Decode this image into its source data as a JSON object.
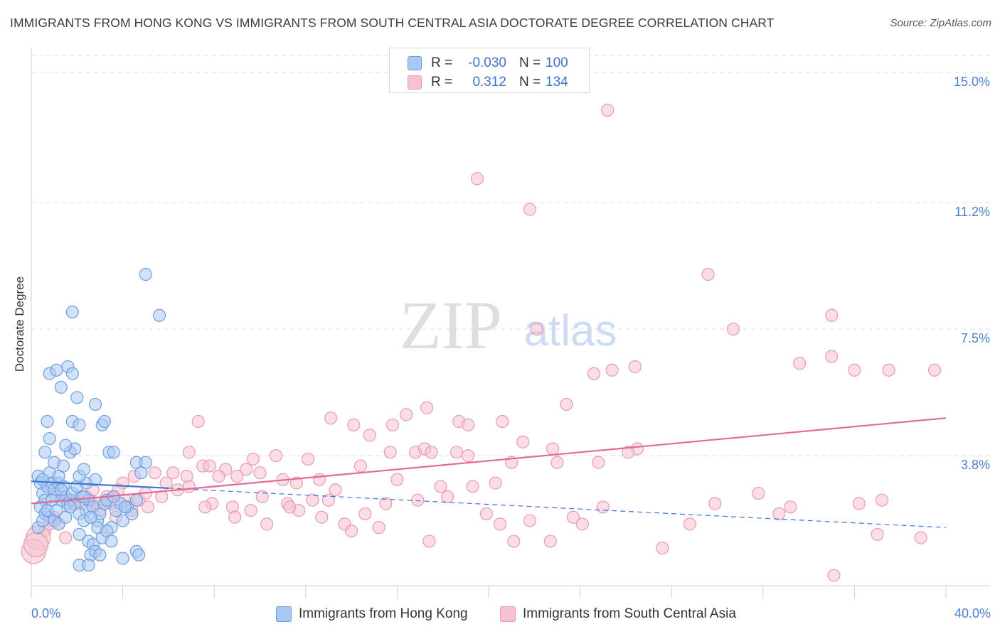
{
  "title": "IMMIGRANTS FROM HONG KONG VS IMMIGRANTS FROM SOUTH CENTRAL ASIA DOCTORATE DEGREE CORRELATION CHART",
  "source": "Source: ZipAtlas.com",
  "colors": {
    "blue_fill": "#a9c8f2",
    "blue_stroke": "#6f9ee0",
    "blue_line": "#3b76d4",
    "pink_fill": "#f6c1d0",
    "pink_stroke": "#ea9ab2",
    "pink_line": "#e26b94",
    "grid": "#dedede",
    "tick_label": "#4a7fd0"
  },
  "legend": {
    "rows": [
      {
        "r_label": "R =",
        "r_value": "-0.030",
        "n_label": "N =",
        "n_value": "100"
      },
      {
        "r_label": "R =",
        "r_value": "0.312",
        "n_label": "N =",
        "n_value": "134"
      }
    ]
  },
  "watermark": {
    "zip": "ZIP",
    "atlas": "atlas"
  },
  "chart_data": {
    "type": "scatter",
    "title": "IMMIGRANTS FROM HONG KONG VS IMMIGRANTS FROM SOUTH CENTRAL ASIA DOCTORATE DEGREE CORRELATION CHART",
    "xlabel": "",
    "ylabel": "Doctorate Degree",
    "xlim": [
      0,
      40
    ],
    "ylim": [
      0,
      15.5
    ],
    "x_tick_labels": [
      "0.0%",
      "40.0%"
    ],
    "y_ticks": [
      3.8,
      7.5,
      11.2,
      15.0
    ],
    "y_tick_labels": [
      "3.8%",
      "7.5%",
      "11.2%",
      "15.0%"
    ],
    "grid": true,
    "legend_position": "top-center",
    "series": [
      {
        "name": "Immigrants from Hong Kong",
        "color": "blue",
        "R": -0.03,
        "N": 100,
        "trend_solid": {
          "x": [
            0,
            6
          ],
          "y": [
            3.05,
            2.85
          ]
        },
        "trend_dashed": {
          "x": [
            6,
            40
          ],
          "y": [
            2.85,
            1.7
          ]
        },
        "points": [
          [
            0.3,
            3.2
          ],
          [
            0.4,
            3.0
          ],
          [
            0.5,
            2.7
          ],
          [
            0.6,
            2.5
          ],
          [
            0.7,
            2.9
          ],
          [
            0.8,
            3.3
          ],
          [
            0.9,
            3.0
          ],
          [
            1.0,
            2.8
          ],
          [
            1.1,
            2.6
          ],
          [
            1.2,
            3.0
          ],
          [
            1.3,
            2.5
          ],
          [
            1.4,
            2.9
          ],
          [
            1.5,
            2.6
          ],
          [
            1.6,
            2.4
          ],
          [
            1.7,
            2.5
          ],
          [
            1.8,
            2.7
          ],
          [
            1.9,
            2.4
          ],
          [
            2.0,
            2.9
          ],
          [
            2.2,
            2.6
          ],
          [
            2.4,
            3.0
          ],
          [
            0.4,
            2.3
          ],
          [
            0.6,
            2.1
          ],
          [
            0.8,
            2.0
          ],
          [
            1.0,
            1.9
          ],
          [
            1.2,
            1.8
          ],
          [
            0.3,
            1.7
          ],
          [
            0.5,
            1.9
          ],
          [
            0.7,
            2.2
          ],
          [
            2.5,
            2.5
          ],
          [
            2.8,
            3.1
          ],
          [
            0.6,
            3.9
          ],
          [
            0.8,
            4.3
          ],
          [
            1.0,
            3.6
          ],
          [
            1.2,
            3.2
          ],
          [
            1.4,
            3.5
          ],
          [
            1.7,
            3.9
          ],
          [
            1.9,
            4.0
          ],
          [
            2.1,
            3.2
          ],
          [
            2.3,
            3.4
          ],
          [
            1.5,
            4.1
          ],
          [
            0.7,
            4.8
          ],
          [
            1.8,
            4.8
          ],
          [
            2.1,
            4.7
          ],
          [
            3.1,
            4.7
          ],
          [
            3.2,
            4.8
          ],
          [
            3.4,
            3.9
          ],
          [
            3.6,
            3.9
          ],
          [
            4.6,
            3.6
          ],
          [
            5.0,
            3.6
          ],
          [
            2.8,
            5.3
          ],
          [
            0.8,
            6.2
          ],
          [
            1.1,
            6.3
          ],
          [
            1.3,
            5.8
          ],
          [
            1.6,
            6.4
          ],
          [
            1.8,
            6.2
          ],
          [
            2.0,
            5.5
          ],
          [
            1.8,
            8.0
          ],
          [
            5.0,
            9.1
          ],
          [
            5.6,
            7.9
          ],
          [
            2.4,
            2.2
          ],
          [
            2.7,
            2.3
          ],
          [
            2.9,
            1.9
          ],
          [
            3.0,
            2.1
          ],
          [
            3.2,
            2.4
          ],
          [
            3.3,
            2.5
          ],
          [
            3.5,
            1.7
          ],
          [
            3.7,
            2.2
          ],
          [
            3.9,
            2.4
          ],
          [
            4.0,
            1.9
          ],
          [
            4.2,
            2.3
          ],
          [
            4.4,
            2.1
          ],
          [
            4.6,
            2.5
          ],
          [
            4.8,
            3.3
          ],
          [
            2.1,
            2.1
          ],
          [
            2.3,
            1.9
          ],
          [
            2.1,
            1.5
          ],
          [
            2.5,
            1.3
          ],
          [
            2.7,
            1.2
          ],
          [
            2.9,
            1.7
          ],
          [
            3.1,
            1.4
          ],
          [
            3.3,
            1.6
          ],
          [
            3.5,
            1.3
          ],
          [
            2.6,
            0.9
          ],
          [
            2.8,
            1.0
          ],
          [
            3.0,
            0.9
          ],
          [
            2.1,
            0.6
          ],
          [
            2.5,
            0.6
          ],
          [
            4.0,
            0.8
          ],
          [
            4.6,
            1.0
          ],
          [
            4.7,
            0.9
          ],
          [
            1.5,
            2.0
          ],
          [
            1.7,
            2.3
          ],
          [
            2.6,
            2.0
          ],
          [
            0.9,
            2.5
          ],
          [
            1.1,
            2.2
          ],
          [
            1.3,
            2.8
          ],
          [
            2.3,
            2.6
          ],
          [
            3.6,
            2.6
          ],
          [
            4.1,
            2.3
          ],
          [
            0.5,
            3.1
          ]
        ]
      },
      {
        "name": "Immigrants from South Central Asia",
        "color": "pink",
        "R": 0.312,
        "N": 134,
        "trend": {
          "x": [
            0,
            40
          ],
          "y": [
            2.4,
            4.9
          ]
        },
        "points": [
          [
            25.2,
            13.9
          ],
          [
            19.5,
            11.9
          ],
          [
            21.8,
            11.0
          ],
          [
            29.6,
            9.1
          ],
          [
            22.1,
            7.5
          ],
          [
            30.7,
            7.5
          ],
          [
            35.0,
            7.9
          ],
          [
            24.6,
            6.2
          ],
          [
            25.4,
            6.3
          ],
          [
            26.4,
            6.4
          ],
          [
            33.6,
            6.5
          ],
          [
            35.0,
            6.7
          ],
          [
            36.0,
            6.3
          ],
          [
            37.5,
            6.3
          ],
          [
            39.5,
            6.3
          ],
          [
            23.4,
            5.3
          ],
          [
            17.3,
            5.2
          ],
          [
            16.4,
            5.0
          ],
          [
            13.1,
            4.9
          ],
          [
            18.7,
            4.8
          ],
          [
            20.6,
            4.8
          ],
          [
            14.1,
            4.7
          ],
          [
            19.1,
            4.7
          ],
          [
            7.3,
            4.8
          ],
          [
            15.8,
            4.7
          ],
          [
            14.8,
            4.4
          ],
          [
            21.5,
            4.2
          ],
          [
            16.8,
            3.9
          ],
          [
            17.2,
            4.0
          ],
          [
            17.5,
            3.9
          ],
          [
            15.7,
            3.9
          ],
          [
            18.6,
            3.9
          ],
          [
            19.1,
            3.8
          ],
          [
            22.8,
            4.0
          ],
          [
            26.5,
            4.0
          ],
          [
            26.1,
            3.9
          ],
          [
            12.1,
            3.7
          ],
          [
            10.7,
            3.8
          ],
          [
            9.7,
            3.7
          ],
          [
            6.9,
            3.9
          ],
          [
            7.5,
            3.5
          ],
          [
            7.8,
            3.5
          ],
          [
            8.5,
            3.4
          ],
          [
            9.4,
            3.4
          ],
          [
            10.0,
            3.3
          ],
          [
            8.2,
            3.2
          ],
          [
            9.0,
            3.2
          ],
          [
            11.6,
            3.0
          ],
          [
            12.6,
            3.1
          ],
          [
            14.4,
            3.5
          ],
          [
            16.0,
            3.1
          ],
          [
            17.9,
            2.9
          ],
          [
            18.2,
            2.6
          ],
          [
            19.3,
            2.9
          ],
          [
            20.3,
            3.0
          ],
          [
            21.0,
            3.6
          ],
          [
            23.0,
            3.6
          ],
          [
            24.8,
            3.6
          ],
          [
            13.3,
            2.8
          ],
          [
            11.0,
            3.1
          ],
          [
            6.2,
            3.3
          ],
          [
            6.8,
            3.2
          ],
          [
            5.4,
            3.3
          ],
          [
            5.9,
            3.0
          ],
          [
            4.0,
            3.0
          ],
          [
            4.5,
            3.2
          ],
          [
            3.8,
            2.8
          ],
          [
            3.6,
            2.6
          ],
          [
            4.7,
            2.5
          ],
          [
            5.1,
            2.3
          ],
          [
            5.7,
            2.6
          ],
          [
            6.4,
            2.8
          ],
          [
            6.9,
            2.9
          ],
          [
            7.9,
            2.4
          ],
          [
            8.8,
            2.3
          ],
          [
            9.6,
            2.2
          ],
          [
            10.1,
            2.6
          ],
          [
            11.2,
            2.4
          ],
          [
            11.7,
            2.2
          ],
          [
            12.3,
            2.5
          ],
          [
            13.0,
            2.5
          ],
          [
            14.6,
            2.1
          ],
          [
            15.5,
            2.4
          ],
          [
            16.9,
            2.5
          ],
          [
            17.4,
            1.3
          ],
          [
            19.9,
            2.1
          ],
          [
            20.5,
            1.8
          ],
          [
            21.1,
            1.3
          ],
          [
            21.8,
            1.9
          ],
          [
            22.7,
            1.3
          ],
          [
            23.7,
            2.0
          ],
          [
            24.1,
            1.8
          ],
          [
            25.0,
            2.3
          ],
          [
            27.6,
            1.1
          ],
          [
            28.8,
            1.8
          ],
          [
            29.9,
            2.4
          ],
          [
            31.8,
            2.7
          ],
          [
            32.7,
            2.1
          ],
          [
            33.2,
            2.3
          ],
          [
            35.1,
            0.3
          ],
          [
            36.2,
            2.4
          ],
          [
            37.0,
            1.5
          ],
          [
            37.2,
            2.5
          ],
          [
            38.9,
            1.4
          ],
          [
            7.6,
            2.3
          ],
          [
            8.9,
            2.0
          ],
          [
            10.3,
            1.8
          ],
          [
            11.3,
            2.3
          ],
          [
            12.7,
            2.0
          ],
          [
            13.7,
            1.8
          ],
          [
            14.0,
            1.6
          ],
          [
            15.2,
            1.7
          ],
          [
            0.6,
            1.6
          ],
          [
            0.8,
            1.8
          ],
          [
            1.0,
            2.0
          ],
          [
            1.2,
            1.8
          ],
          [
            1.5,
            1.4
          ],
          [
            1.7,
            2.3
          ],
          [
            1.9,
            2.5
          ],
          [
            2.2,
            2.4
          ],
          [
            2.4,
            2.6
          ],
          [
            2.6,
            2.5
          ],
          [
            2.7,
            2.8
          ],
          [
            2.9,
            2.4
          ],
          [
            3.0,
            2.2
          ],
          [
            3.3,
            2.6
          ],
          [
            3.5,
            2.4
          ],
          [
            3.7,
            2.0
          ],
          [
            4.1,
            2.5
          ],
          [
            4.4,
            2.2
          ],
          [
            5.0,
            2.7
          ],
          [
            0.3,
            1.4
          ],
          [
            0.1,
            1.0
          ],
          [
            0.2,
            1.2
          ]
        ]
      }
    ]
  },
  "bottom_legend": [
    {
      "label": "Immigrants from Hong Kong"
    },
    {
      "label": "Immigrants from South Central Asia"
    }
  ]
}
